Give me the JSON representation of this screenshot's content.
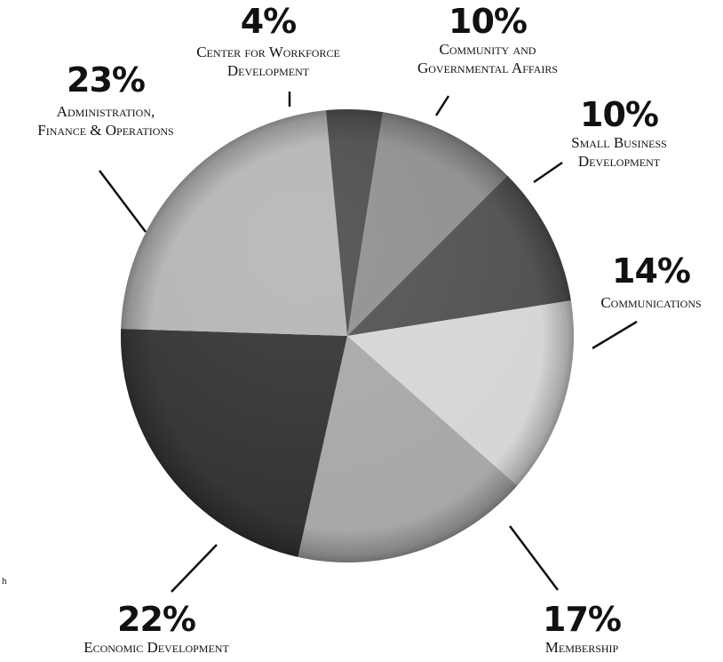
{
  "chart_data": {
    "type": "pie",
    "title": "",
    "start_angle_deg": 9,
    "direction": "clockwise",
    "slices": [
      {
        "label": "Community and Governmental Affairs",
        "value": 10,
        "pct_text": "10%",
        "label_lines": [
          "Community and",
          "Governmental Affairs"
        ],
        "color": "#8c8c8c"
      },
      {
        "label": "Small Business Development",
        "value": 10,
        "pct_text": "10%",
        "label_lines": [
          "Small Business",
          "Development"
        ],
        "color": "#4d4d4d"
      },
      {
        "label": "Communications",
        "value": 14,
        "pct_text": "14%",
        "label_lines": [
          "Communications"
        ],
        "color": "#d5d5d5"
      },
      {
        "label": "Membership",
        "value": 17,
        "pct_text": "17%",
        "label_lines": [
          "Membership"
        ],
        "color": "#a6a6a6"
      },
      {
        "label": "Economic Development",
        "value": 22,
        "pct_text": "22%",
        "label_lines": [
          "Economic Development"
        ],
        "color": "#2f2f2f"
      },
      {
        "label": "Administration, Finance & Operations",
        "value": 23,
        "pct_text": "23%",
        "label_lines": [
          "Administration,",
          "Finance & Operations"
        ],
        "color": "#b3b3b3"
      },
      {
        "label": "Center for Workforce Development",
        "value": 4,
        "pct_text": "4%",
        "label_lines": [
          "Center for Workforce",
          "Development"
        ],
        "color": "#474747"
      }
    ]
  },
  "fragment_text": "h"
}
